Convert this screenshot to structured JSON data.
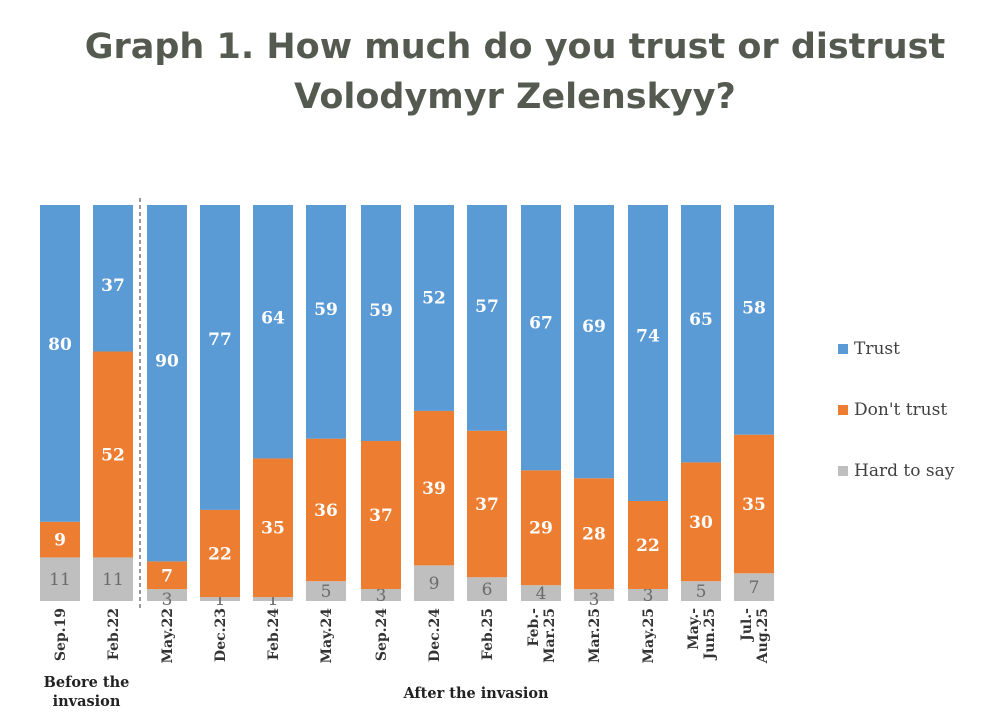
{
  "title_line1": "Graph 1. How much do you trust or distrust",
  "title_line2": "Volodymyr Zelenskyy?",
  "chart_data": {
    "type": "bar",
    "stacked": true,
    "normalized_percent": true,
    "title": "Graph 1. How much do you trust or distrust Volodymyr Zelenskyy?",
    "categories": [
      [
        "Sep.19"
      ],
      [
        "Feb.22"
      ],
      [
        "May.22"
      ],
      [
        "Dec.23"
      ],
      [
        "Feb.24"
      ],
      [
        "May.24"
      ],
      [
        "Sep.24"
      ],
      [
        "Dec.24"
      ],
      [
        "Feb.25"
      ],
      [
        "Feb.-",
        "Mar.25"
      ],
      [
        "Mar.25"
      ],
      [
        "May.25"
      ],
      [
        "May.-",
        "Jun.25"
      ],
      [
        "Jul.-",
        "Aug.25"
      ]
    ],
    "series": [
      {
        "name": "Trust",
        "color": "#5b9bd5",
        "values": [
          80,
          37,
          90,
          77,
          64,
          59,
          59,
          52,
          57,
          67,
          69,
          74,
          65,
          58
        ]
      },
      {
        "name": "Don't trust",
        "color": "#ed7d31",
        "values": [
          9,
          52,
          7,
          22,
          35,
          36,
          37,
          39,
          37,
          29,
          28,
          22,
          30,
          35
        ]
      },
      {
        "name": "Hard to say",
        "color": "#bfbfbf",
        "values": [
          11,
          11,
          3,
          1,
          1,
          5,
          3,
          9,
          6,
          4,
          3,
          3,
          5,
          7
        ]
      }
    ],
    "groups": [
      {
        "label_lines": [
          "Before the",
          "invasion"
        ],
        "from": 0,
        "to": 1
      },
      {
        "label_lines": [
          "After the invasion"
        ],
        "from": 2,
        "to": 13
      }
    ],
    "divider_after_index": 1,
    "legend": "right",
    "grid": false
  }
}
